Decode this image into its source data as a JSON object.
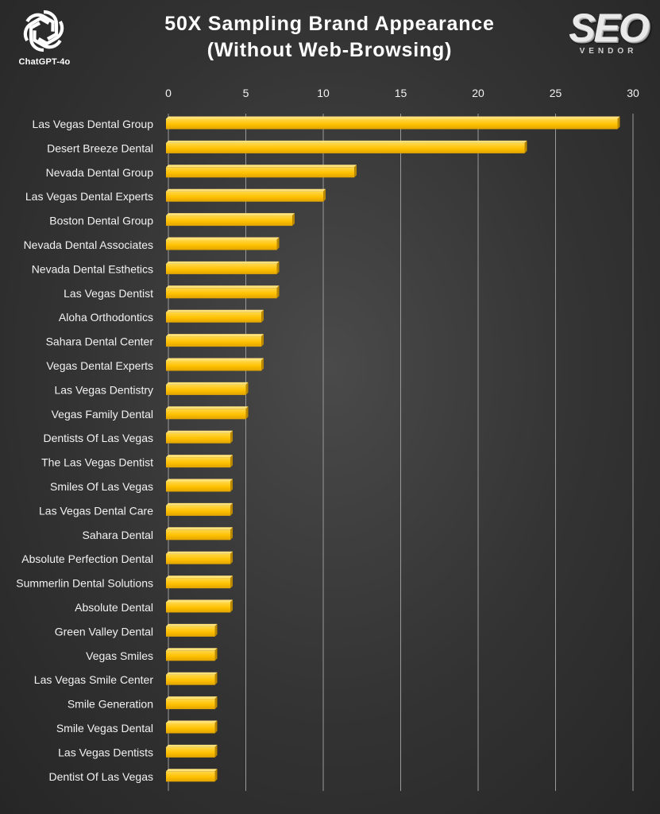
{
  "branding": {
    "left_logo_caption": "ChatGPT-4o",
    "right_logo_word": "SEO",
    "right_logo_sub": "VENDOR",
    "right_logo_icon": "seo-vendor-logo",
    "left_logo_icon": "openai-knot-logo"
  },
  "chart_data": {
    "type": "bar",
    "orientation": "horizontal",
    "title_line1": "50X Sampling Brand Appearance",
    "title_line2": "(Without Web-Browsing)",
    "xlim": [
      0,
      30
    ],
    "xticks": [
      0,
      5,
      10,
      15,
      20,
      25,
      30
    ],
    "x_axis_position": "top",
    "grid": "vertical",
    "bar_color": "#FFC000",
    "categories": [
      "Las Vegas Dental Group",
      "Desert Breeze Dental",
      "Nevada Dental Group",
      "Las Vegas Dental Experts",
      "Boston Dental Group",
      "Nevada Dental Associates",
      "Nevada Dental Esthetics",
      "Las Vegas Dentist",
      "Aloha Orthodontics",
      "Sahara Dental Center",
      "Vegas Dental Experts",
      "Las Vegas Dentistry",
      "Vegas Family Dental",
      "Dentists Of Las Vegas",
      "The Las Vegas Dentist",
      "Smiles Of Las Vegas",
      "Las Vegas Dental Care",
      "Sahara Dental",
      "Absolute Perfection Dental",
      "Summerlin Dental Solutions",
      "Absolute Dental",
      "Green Valley Dental",
      "Vegas Smiles",
      "Las Vegas Smile Center",
      "Smile Generation",
      "Smile Vegas Dental",
      "Las Vegas Dentists",
      "Dentist Of Las Vegas"
    ],
    "values": [
      29,
      23,
      12,
      10,
      8,
      7,
      7,
      7,
      6,
      6,
      6,
      5,
      5,
      4,
      4,
      4,
      4,
      4,
      4,
      4,
      4,
      3,
      3,
      3,
      3,
      3,
      3,
      3
    ]
  }
}
